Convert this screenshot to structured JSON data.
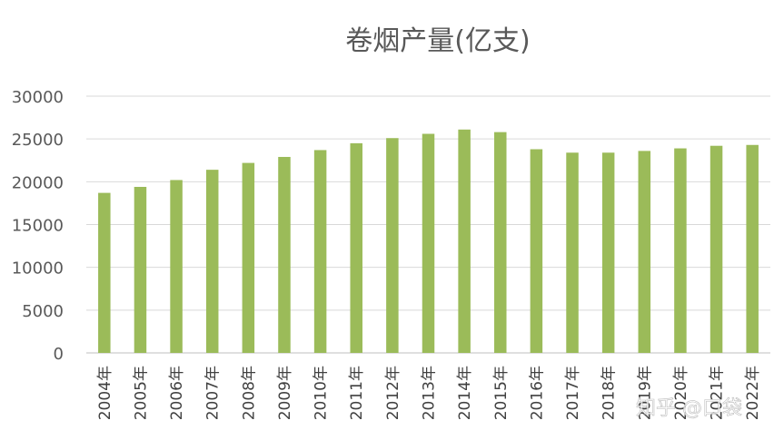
{
  "chart_data": {
    "type": "bar",
    "title": "卷烟产量(亿支)",
    "xlabel": "",
    "ylabel": "",
    "categories": [
      "2004年",
      "2005年",
      "2006年",
      "2007年",
      "2008年",
      "2009年",
      "2010年",
      "2011年",
      "2012年",
      "2013年",
      "2014年",
      "2015年",
      "2016年",
      "2017年",
      "2018年",
      "2019年",
      "2020年",
      "2021年",
      "2022年"
    ],
    "values": [
      18700,
      19400,
      20200,
      21400,
      22200,
      22900,
      23700,
      24500,
      25100,
      25600,
      26100,
      25800,
      23800,
      23400,
      23400,
      23600,
      23900,
      24200,
      24300
    ],
    "ylim": [
      0,
      30000
    ],
    "yticks": [
      0,
      5000,
      10000,
      15000,
      20000,
      25000,
      30000
    ],
    "grid": true,
    "legend": "none",
    "bar_color": "#9bbb59"
  },
  "watermark": "知乎 @口袋"
}
